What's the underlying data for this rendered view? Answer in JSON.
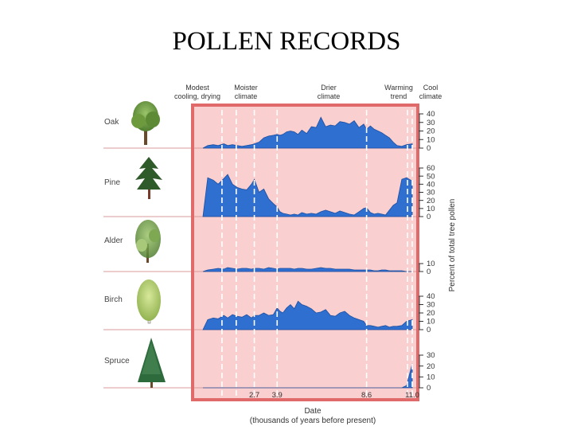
{
  "title": "POLLEN RECORDS",
  "colors": {
    "area_fill": "#2f6fd0",
    "area_stroke": "#1d4fa0",
    "panel_bg": "#f9cfcf",
    "frame": "#e06a6a",
    "divider": "#d99a9a",
    "guide": "#ffffff"
  },
  "chart_data": {
    "type": "area",
    "x_axis": {
      "label": "Date",
      "sublabel": "(thousands of years before present)",
      "ticks": [
        2.7,
        3.9,
        8.6,
        11.0
      ],
      "tick_labels": [
        "2.7",
        "3.9",
        "8.6",
        "11.0"
      ],
      "x": [
        0.0,
        0.25,
        0.55,
        0.8,
        1.1,
        1.3,
        1.55,
        1.8,
        2.05,
        2.3,
        2.55,
        2.7,
        2.95,
        3.2,
        3.45,
        3.7,
        3.9,
        4.05,
        4.2,
        4.4,
        4.6,
        4.8,
        5.0,
        5.2,
        5.45,
        5.7,
        5.95,
        6.2,
        6.45,
        6.7,
        6.95,
        7.2,
        7.45,
        7.7,
        7.95,
        8.2,
        8.45,
        8.6,
        8.8,
        9.0,
        9.2,
        9.4,
        9.6,
        9.8,
        10.0,
        10.2,
        10.45,
        10.7,
        11.0
      ]
    },
    "climate_periods": [
      {
        "label": "Modest cooling, drying",
        "x": 1.0
      },
      {
        "label": "Moister climate",
        "x": 1.75
      },
      {
        "label": "Drier climate",
        "x": 5.6
      },
      {
        "label": "Warming trend",
        "x": 9.7
      },
      {
        "label": "Cool climate",
        "x": 10.75
      }
    ],
    "guide_lines_x": [
      1.0,
      1.75,
      2.7,
      3.9,
      8.6,
      10.75,
      11.0
    ],
    "y_axis_label": "Percent of total tree pollen",
    "series": [
      {
        "name": "Oak",
        "ymax": 40,
        "ticks": [
          0,
          10,
          20,
          30,
          40
        ],
        "values": [
          0,
          3,
          4,
          3,
          5,
          3,
          4,
          3,
          2,
          3,
          4,
          5,
          7,
          12,
          14,
          15,
          16,
          15,
          16,
          19,
          20,
          19,
          16,
          21,
          17,
          25,
          24,
          36,
          25,
          27,
          26,
          31,
          30,
          28,
          32,
          24,
          28,
          22,
          26,
          22,
          20,
          18,
          15,
          12,
          7,
          3,
          2,
          4,
          5
        ]
      },
      {
        "name": "Pine",
        "ymax": 60,
        "ticks": [
          0,
          10,
          20,
          30,
          40,
          50,
          60
        ],
        "values": [
          0,
          48,
          45,
          40,
          47,
          52,
          40,
          36,
          34,
          33,
          40,
          46,
          30,
          34,
          22,
          16,
          12,
          6,
          4,
          3,
          2,
          3,
          2,
          5,
          3,
          4,
          3,
          6,
          8,
          6,
          4,
          7,
          5,
          3,
          2,
          6,
          10,
          11,
          5,
          3,
          4,
          3,
          2,
          8,
          14,
          17,
          46,
          48,
          44
        ]
      },
      {
        "name": "Alder",
        "ymax": 10,
        "ticks": [
          0,
          10
        ],
        "values": [
          0,
          2,
          3,
          4,
          3,
          5,
          4,
          3,
          4,
          4,
          3,
          4,
          4,
          3,
          5,
          4,
          3,
          4,
          4,
          4,
          4,
          3,
          4,
          4,
          3,
          3,
          4,
          5,
          4,
          4,
          3,
          3,
          3,
          3,
          2,
          2,
          2,
          2,
          2,
          1,
          1,
          2,
          2,
          1,
          1,
          1,
          1,
          0,
          0
        ]
      },
      {
        "name": "Birch",
        "ymax": 40,
        "ticks": [
          0,
          10,
          20,
          30,
          40
        ],
        "values": [
          0,
          12,
          14,
          13,
          17,
          14,
          18,
          16,
          15,
          18,
          14,
          17,
          17,
          20,
          17,
          18,
          26,
          22,
          20,
          26,
          30,
          25,
          34,
          30,
          28,
          25,
          20,
          21,
          24,
          17,
          16,
          20,
          22,
          17,
          14,
          12,
          10,
          5,
          5,
          4,
          3,
          4,
          5,
          3,
          4,
          4,
          5,
          10,
          12
        ]
      },
      {
        "name": "Spruce",
        "ymax": 30,
        "ticks": [
          0,
          10,
          20,
          30
        ],
        "values": [
          0,
          0,
          0,
          0,
          0,
          0,
          0,
          0,
          0,
          0,
          0,
          0,
          0,
          0,
          0,
          0,
          0,
          0,
          0,
          0,
          0,
          0,
          0,
          0,
          0,
          0,
          0,
          0,
          0,
          0,
          0,
          0,
          0,
          0,
          0,
          0,
          0,
          0,
          0,
          0,
          0,
          0,
          0,
          0,
          0,
          0,
          0,
          2,
          22
        ]
      }
    ]
  }
}
